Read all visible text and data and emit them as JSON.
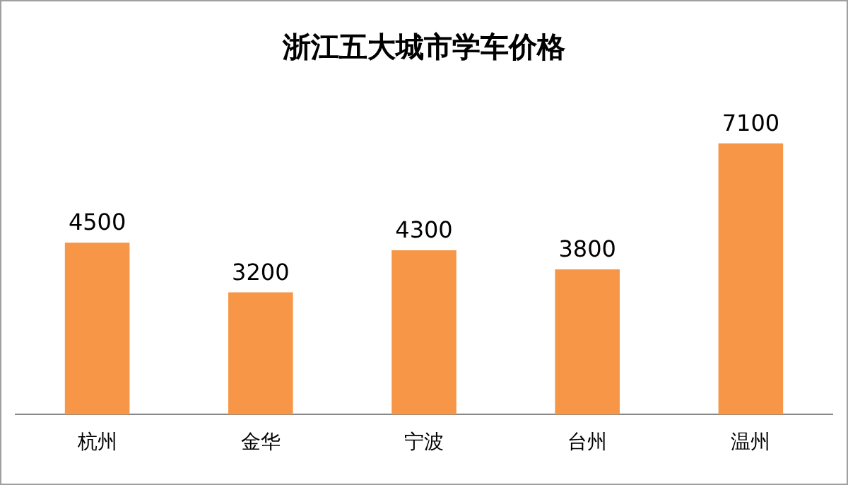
{
  "chart_data": {
    "type": "bar",
    "title": "浙江五大城市学车价格",
    "categories": [
      "杭州",
      "金华",
      "宁波",
      "台州",
      "温州"
    ],
    "values": [
      4500,
      3200,
      4300,
      3800,
      7100
    ],
    "color": "#f79646",
    "data_labels": true,
    "grid": false,
    "legend": false
  }
}
